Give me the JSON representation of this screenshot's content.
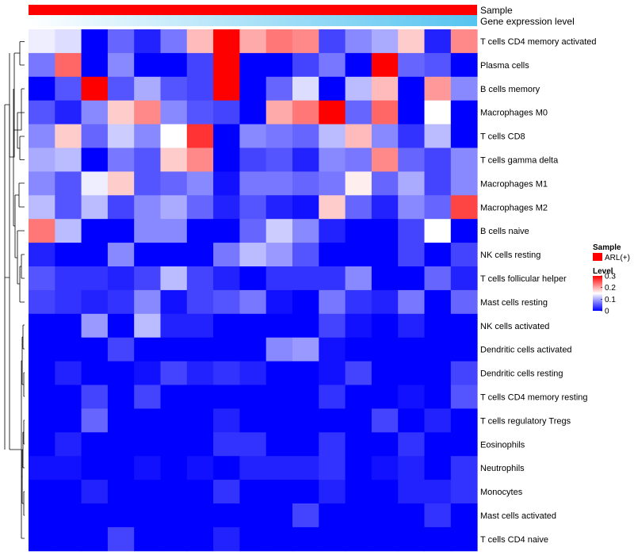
{
  "chart_data": {
    "type": "heatmap",
    "title": "",
    "column_annotations": [
      {
        "name": "Sample",
        "color": "#ff0000"
      },
      {
        "name": "Gene expression level",
        "gradient_from": "#ffffff",
        "gradient_to": "#56c4f0"
      }
    ],
    "rows": [
      "T cells CD4 memory activated",
      "Plasma cells",
      "B cells memory",
      "Macrophages M0",
      "T cells CD8",
      "T cells gamma delta",
      "Macrophages M1",
      "Macrophages M2",
      "B cells naive",
      "NK cells resting",
      "T cells follicular helper",
      "Mast cells resting",
      "NK cells activated",
      "Dendritic cells activated",
      "Dendritic cells resting",
      "T cells CD4 memory resting",
      "T cells regulatory  Tregs",
      "Eosinophils",
      "Neutrophils",
      "Monocytes",
      "Mast cells activated",
      "T cells CD4 naive"
    ],
    "n_columns": 17,
    "values": [
      [
        0.14,
        0.13,
        0.0,
        0.06,
        0.02,
        0.07,
        0.19,
        0.3,
        0.2,
        0.23,
        0.22,
        0.04,
        0.08,
        0.1,
        0.18,
        0.02,
        0.22
      ],
      [
        0.07,
        0.24,
        0.0,
        0.08,
        0.0,
        0.0,
        0.04,
        0.3,
        0.0,
        0.0,
        0.04,
        0.07,
        0.0,
        0.3,
        0.06,
        0.05,
        0.0
      ],
      [
        0.0,
        0.05,
        0.3,
        0.05,
        0.1,
        0.05,
        0.04,
        0.3,
        0.0,
        0.06,
        0.13,
        0.0,
        0.11,
        0.19,
        0.0,
        0.21,
        0.08
      ],
      [
        0.05,
        0.02,
        0.08,
        0.18,
        0.22,
        0.08,
        0.05,
        0.04,
        0.0,
        0.2,
        0.23,
        0.3,
        0.06,
        0.24,
        0.0,
        0.15,
        0.0
      ],
      [
        0.08,
        0.18,
        0.06,
        0.12,
        0.08,
        0.15,
        0.27,
        0.0,
        0.08,
        0.07,
        0.06,
        0.11,
        0.19,
        0.08,
        0.03,
        0.11,
        0.0
      ],
      [
        0.1,
        0.11,
        0.0,
        0.07,
        0.05,
        0.18,
        0.22,
        0.0,
        0.04,
        0.05,
        0.02,
        0.08,
        0.07,
        0.22,
        0.06,
        0.04,
        0.08
      ],
      [
        0.08,
        0.05,
        0.14,
        0.18,
        0.05,
        0.06,
        0.08,
        0.01,
        0.07,
        0.07,
        0.06,
        0.07,
        0.16,
        0.06,
        0.1,
        0.04,
        0.08
      ],
      [
        0.11,
        0.05,
        0.11,
        0.04,
        0.08,
        0.1,
        0.06,
        0.02,
        0.05,
        0.02,
        0.01,
        0.18,
        0.06,
        0.02,
        0.08,
        0.06,
        0.26
      ],
      [
        0.23,
        0.11,
        0.0,
        0.0,
        0.08,
        0.08,
        0.0,
        0.0,
        0.06,
        0.12,
        0.08,
        0.02,
        0.0,
        0.0,
        0.04,
        0.15,
        0.0
      ],
      [
        0.02,
        0.0,
        0.0,
        0.08,
        0.0,
        0.0,
        0.0,
        0.07,
        0.11,
        0.09,
        0.05,
        0.0,
        0.0,
        0.0,
        0.04,
        0.0,
        0.04
      ],
      [
        0.05,
        0.03,
        0.03,
        0.02,
        0.04,
        0.11,
        0.04,
        0.02,
        0.0,
        0.03,
        0.03,
        0.03,
        0.08,
        0.0,
        0.0,
        0.06,
        0.02
      ],
      [
        0.04,
        0.03,
        0.02,
        0.03,
        0.08,
        0.01,
        0.04,
        0.05,
        0.07,
        0.01,
        0.0,
        0.07,
        0.03,
        0.02,
        0.07,
        0.0,
        0.06
      ],
      [
        0.0,
        0.0,
        0.09,
        0.0,
        0.11,
        0.02,
        0.02,
        0.0,
        0.0,
        0.0,
        0.0,
        0.04,
        0.01,
        0.0,
        0.02,
        0.0,
        0.0
      ],
      [
        0.0,
        0.0,
        0.0,
        0.04,
        0.0,
        0.0,
        0.0,
        0.0,
        0.0,
        0.08,
        0.09,
        0.01,
        0.0,
        0.0,
        0.0,
        0.0,
        0.0
      ],
      [
        0.0,
        0.02,
        0.0,
        0.0,
        0.01,
        0.04,
        0.02,
        0.03,
        0.02,
        0.0,
        0.0,
        0.01,
        0.04,
        0.0,
        0.0,
        0.0,
        0.04
      ],
      [
        0.0,
        0.0,
        0.04,
        0.0,
        0.04,
        0.0,
        0.0,
        0.0,
        0.0,
        0.0,
        0.0,
        0.03,
        0.0,
        0.0,
        0.01,
        0.0,
        0.05
      ],
      [
        0.0,
        0.0,
        0.06,
        0.0,
        0.0,
        0.0,
        0.0,
        0.02,
        0.0,
        0.0,
        0.0,
        0.0,
        0.0,
        0.04,
        0.0,
        0.02,
        0.0
      ],
      [
        0.0,
        0.02,
        0.0,
        0.0,
        0.0,
        0.0,
        0.0,
        0.03,
        0.03,
        0.0,
        0.0,
        0.03,
        0.0,
        0.0,
        0.03,
        0.0,
        0.0
      ],
      [
        0.01,
        0.01,
        0.0,
        0.0,
        0.01,
        0.0,
        0.01,
        0.0,
        0.02,
        0.02,
        0.02,
        0.03,
        0.0,
        0.01,
        0.02,
        0.0,
        0.03
      ],
      [
        0.0,
        0.0,
        0.02,
        0.0,
        0.0,
        0.0,
        0.0,
        0.03,
        0.0,
        0.0,
        0.0,
        0.02,
        0.0,
        0.0,
        0.02,
        0.02,
        0.03
      ],
      [
        0.0,
        0.0,
        0.0,
        0.0,
        0.0,
        0.0,
        0.0,
        0.0,
        0.0,
        0.0,
        0.04,
        0.0,
        0.0,
        0.0,
        0.0,
        0.03,
        0.0
      ],
      [
        0.0,
        0.0,
        0.0,
        0.04,
        0.0,
        0.0,
        0.0,
        0.02,
        0.0,
        0.0,
        0.0,
        0.0,
        0.0,
        0.0,
        0.0,
        0.0,
        0.0
      ]
    ],
    "color_scale": {
      "stops": [
        0,
        0.15,
        0.3
      ],
      "colors": [
        "#0000ff",
        "#ffffff",
        "#ff0000"
      ],
      "range": [
        0,
        0.3
      ]
    },
    "legend": {
      "sample": {
        "title": "Sample",
        "entries": [
          {
            "label": "ARL(+)",
            "color": "#ff0000"
          }
        ]
      },
      "level": {
        "title": "Level",
        "ticks": [
          "0.3",
          "0.2",
          "0.1",
          "0"
        ],
        "tick_values": [
          0.3,
          0.2,
          0.1,
          0
        ]
      }
    },
    "row_dendrogram": "left",
    "xlabel": "",
    "ylabel": ""
  }
}
